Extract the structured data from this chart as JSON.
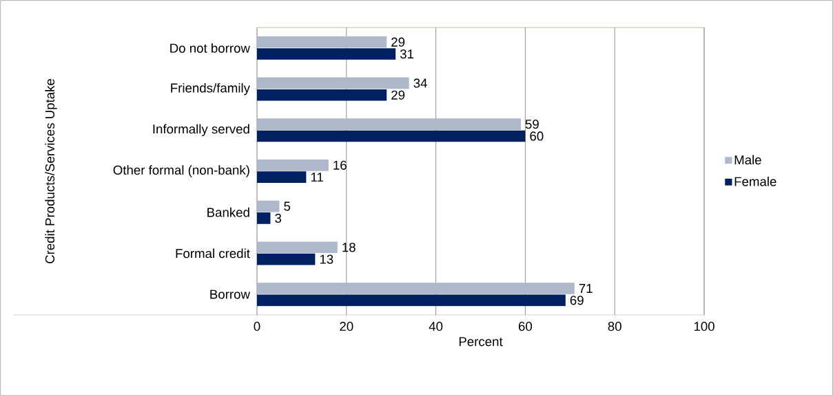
{
  "chart_data": {
    "type": "bar",
    "orientation": "horizontal",
    "xlabel": "Percent",
    "ylabel": "Credit Products/Services Uptake",
    "categories": [
      "Do not borrow",
      "Friends/family",
      "Informally served",
      "Other formal (non-bank)",
      "Banked",
      "Formal credit",
      "Borrow"
    ],
    "series": [
      {
        "name": "Male",
        "color": "#adb9ca",
        "values": [
          29,
          34,
          59,
          16,
          5,
          18,
          71
        ]
      },
      {
        "name": "Female",
        "color": "#002060",
        "values": [
          31,
          29,
          60,
          11,
          3,
          13,
          69
        ]
      }
    ],
    "xlim": [
      0,
      100
    ],
    "xticks": [
      0,
      20,
      40,
      60,
      80,
      100
    ],
    "grid": "x",
    "legend": "right",
    "data_labels": true
  }
}
